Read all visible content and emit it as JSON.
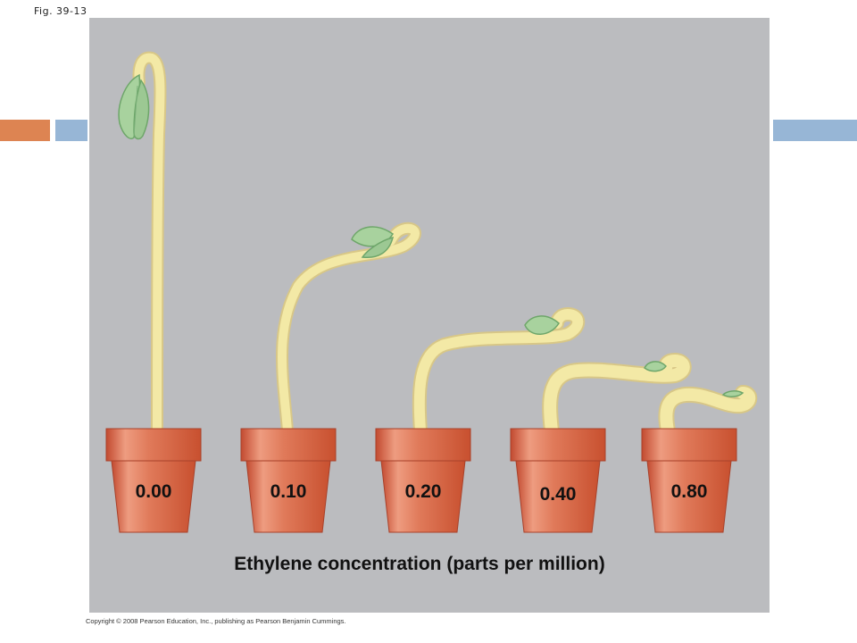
{
  "figure": {
    "label": "Fig. 39-13",
    "caption": "Ethylene concentration (parts per million)",
    "copyright": "Copyright © 2008 Pearson Education, Inc., publishing as Pearson Benjamin Cummings."
  },
  "pots": [
    {
      "concentration": "0.00"
    },
    {
      "concentration": "0.10"
    },
    {
      "concentration": "0.20"
    },
    {
      "concentration": "0.40"
    },
    {
      "concentration": "0.80"
    }
  ],
  "colors": {
    "panel": "#bbbcbf",
    "pot": "#d4573a",
    "pot_highlight": "#ee9c80",
    "stem": "#f3e9a6",
    "stem_outline": "#d8c787",
    "leaf": "#a8d29e",
    "leaf_outline": "#6ea66a",
    "accent_orange": "#dd8452",
    "accent_blue": "#97b6d6"
  },
  "icons": [
    "seedling-icon",
    "flower-pot-icon"
  ]
}
